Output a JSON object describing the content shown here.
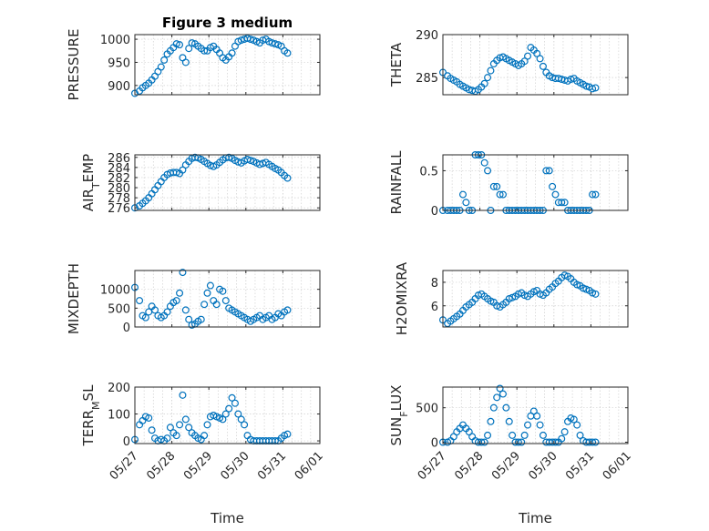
{
  "chart_data": [
    {
      "type": "scatter",
      "title": "Figure 3 medium",
      "ylabel": "PRESSURE",
      "xlim": [
        "05/27",
        "06/01"
      ],
      "ylim": [
        880,
        1010
      ],
      "yticks": [
        900,
        950,
        1000
      ],
      "ytick_labels": [
        "900",
        "950",
        "1000"
      ],
      "xticks": [
        "05/27",
        "05/28",
        "05/29",
        "05/30",
        "05/31",
        "06/01"
      ],
      "show_xticklabels": false,
      "grid": true,
      "x": [
        "05/27 00:00",
        "05/27 03:00",
        "05/27 05:00",
        "05/27 07:00",
        "05/27 09:00",
        "05/27 11:00",
        "05/27 13:00",
        "05/27 15:00",
        "05/27 17:00",
        "05/27 19:00",
        "05/27 21:00",
        "05/27 23:00",
        "05/28 01:00",
        "05/28 03:00",
        "05/28 05:00",
        "05/28 07:00",
        "05/28 09:00",
        "05/28 11:00",
        "05/28 13:00",
        "05/28 15:00",
        "05/28 17:00",
        "05/28 19:00",
        "05/28 21:00",
        "05/28 23:00",
        "05/29 01:00",
        "05/29 03:00",
        "05/29 05:00",
        "05/29 07:00",
        "05/29 09:00",
        "05/29 11:00",
        "05/29 13:00",
        "05/29 15:00",
        "05/29 17:00",
        "05/29 19:00",
        "05/29 21:00",
        "05/29 23:00",
        "05/30 01:00",
        "05/30 03:00",
        "05/30 05:00",
        "05/30 07:00",
        "05/30 09:00",
        "05/30 11:00",
        "05/30 13:00",
        "05/30 15:00",
        "05/30 17:00",
        "05/30 19:00",
        "05/30 21:00",
        "05/30 23:00",
        "05/31 01:00",
        "05/31 03:00"
      ],
      "y": [
        883,
        888,
        895,
        900,
        905,
        912,
        920,
        930,
        940,
        955,
        968,
        975,
        982,
        990,
        988,
        960,
        950,
        980,
        992,
        990,
        985,
        980,
        975,
        975,
        982,
        985,
        978,
        970,
        960,
        955,
        962,
        970,
        985,
        995,
        998,
        1000,
        1002,
        1000,
        998,
        995,
        992,
        998,
        1000,
        995,
        992,
        990,
        988,
        985,
        975,
        970
      ]
    },
    {
      "type": "scatter",
      "title": "",
      "ylabel": "THETA",
      "xlim": [
        "05/27",
        "06/01"
      ],
      "ylim": [
        283,
        290
      ],
      "yticks": [
        285,
        290
      ],
      "ytick_labels": [
        "285",
        "290"
      ],
      "xticks": [
        "05/27",
        "05/28",
        "05/29",
        "05/30",
        "05/31",
        "06/01"
      ],
      "show_xticklabels": false,
      "grid": true,
      "x": [
        "05/27 00:00",
        "05/27 03:00",
        "05/27 05:00",
        "05/27 07:00",
        "05/27 09:00",
        "05/27 11:00",
        "05/27 13:00",
        "05/27 15:00",
        "05/27 17:00",
        "05/27 19:00",
        "05/27 21:00",
        "05/27 23:00",
        "05/28 01:00",
        "05/28 03:00",
        "05/28 05:00",
        "05/28 07:00",
        "05/28 09:00",
        "05/28 11:00",
        "05/28 13:00",
        "05/28 15:00",
        "05/28 17:00",
        "05/28 19:00",
        "05/28 21:00",
        "05/28 23:00",
        "05/29 01:00",
        "05/29 03:00",
        "05/29 05:00",
        "05/29 07:00",
        "05/29 09:00",
        "05/29 11:00",
        "05/29 13:00",
        "05/29 15:00",
        "05/29 17:00",
        "05/29 19:00",
        "05/29 21:00",
        "05/29 23:00",
        "05/30 01:00",
        "05/30 03:00",
        "05/30 05:00",
        "05/30 07:00",
        "05/30 09:00",
        "05/30 11:00",
        "05/30 13:00",
        "05/30 15:00",
        "05/30 17:00",
        "05/30 19:00",
        "05/30 21:00",
        "05/30 23:00",
        "05/31 01:00",
        "05/31 03:00"
      ],
      "y": [
        285.6,
        285.2,
        284.9,
        284.7,
        284.5,
        284.2,
        284.0,
        283.8,
        283.6,
        283.5,
        283.4,
        283.6,
        283.9,
        284.3,
        285.0,
        285.8,
        286.6,
        287.0,
        287.3,
        287.4,
        287.2,
        287.0,
        286.8,
        286.6,
        286.4,
        286.6,
        286.9,
        287.5,
        288.5,
        288.2,
        287.8,
        287.2,
        286.3,
        285.6,
        285.2,
        285.0,
        284.9,
        284.9,
        284.8,
        284.7,
        284.6,
        284.8,
        284.9,
        284.6,
        284.4,
        284.2,
        284.0,
        283.9,
        283.7,
        283.8
      ]
    },
    {
      "type": "scatter",
      "title": "",
      "ylabel": "AIR_TEMP",
      "xlim": [
        "05/27",
        "06/01"
      ],
      "ylim": [
        275.5,
        286.5
      ],
      "yticks": [
        276,
        278,
        280,
        282,
        284,
        286
      ],
      "ytick_labels": [
        "276",
        "278",
        "280",
        "282",
        "284",
        "286"
      ],
      "xticks": [
        "05/27",
        "05/28",
        "05/29",
        "05/30",
        "05/31",
        "06/01"
      ],
      "show_xticklabels": false,
      "grid": true,
      "x": [
        "05/27 00:00",
        "05/27 03:00",
        "05/27 05:00",
        "05/27 07:00",
        "05/27 09:00",
        "05/27 11:00",
        "05/27 13:00",
        "05/27 15:00",
        "05/27 17:00",
        "05/27 19:00",
        "05/27 21:00",
        "05/27 23:00",
        "05/28 01:00",
        "05/28 03:00",
        "05/28 05:00",
        "05/28 07:00",
        "05/28 09:00",
        "05/28 11:00",
        "05/28 13:00",
        "05/28 15:00",
        "05/28 17:00",
        "05/28 19:00",
        "05/28 21:00",
        "05/28 23:00",
        "05/29 01:00",
        "05/29 03:00",
        "05/29 05:00",
        "05/29 07:00",
        "05/29 09:00",
        "05/29 11:00",
        "05/29 13:00",
        "05/29 15:00",
        "05/29 17:00",
        "05/29 19:00",
        "05/29 21:00",
        "05/29 23:00",
        "05/30 01:00",
        "05/30 03:00",
        "05/30 05:00",
        "05/30 07:00",
        "05/30 09:00",
        "05/30 11:00",
        "05/30 13:00",
        "05/30 15:00",
        "05/30 17:00",
        "05/30 19:00",
        "05/30 21:00",
        "05/30 23:00",
        "05/31 01:00",
        "05/31 03:00"
      ],
      "y": [
        276.0,
        276.4,
        276.9,
        277.4,
        278.0,
        278.8,
        279.6,
        280.4,
        281.2,
        282.0,
        282.6,
        282.9,
        283.0,
        283.0,
        282.8,
        283.5,
        284.5,
        285.2,
        285.8,
        286.0,
        285.9,
        285.6,
        285.2,
        284.8,
        284.4,
        284.2,
        284.5,
        285.0,
        285.5,
        285.9,
        286.0,
        285.8,
        285.4,
        285.1,
        284.9,
        285.3,
        285.6,
        285.4,
        285.2,
        284.9,
        284.6,
        284.8,
        285.0,
        284.6,
        284.2,
        283.8,
        283.5,
        283.0,
        282.4,
        281.9
      ]
    },
    {
      "type": "scatter",
      "title": "",
      "ylabel": "RAINFALL",
      "xlim": [
        "05/27",
        "06/01"
      ],
      "ylim": [
        0,
        0.7
      ],
      "yticks": [
        0,
        0.5
      ],
      "ytick_labels": [
        "0",
        "0.5"
      ],
      "xticks": [
        "05/27",
        "05/28",
        "05/29",
        "05/30",
        "05/31",
        "06/01"
      ],
      "show_xticklabels": false,
      "grid": true,
      "x": [
        "05/27 00:00",
        "05/27 03:00",
        "05/27 05:00",
        "05/27 07:00",
        "05/27 09:00",
        "05/27 11:00",
        "05/27 13:00",
        "05/27 15:00",
        "05/27 17:00",
        "05/27 19:00",
        "05/27 21:00",
        "05/27 23:00",
        "05/28 01:00",
        "05/28 03:00",
        "05/28 05:00",
        "05/28 07:00",
        "05/28 09:00",
        "05/28 11:00",
        "05/28 13:00",
        "05/28 15:00",
        "05/28 17:00",
        "05/28 19:00",
        "05/28 21:00",
        "05/28 23:00",
        "05/29 01:00",
        "05/29 03:00",
        "05/29 05:00",
        "05/29 07:00",
        "05/29 09:00",
        "05/29 11:00",
        "05/29 13:00",
        "05/29 15:00",
        "05/29 17:00",
        "05/29 19:00",
        "05/29 21:00",
        "05/29 23:00",
        "05/30 01:00",
        "05/30 03:00",
        "05/30 05:00",
        "05/30 07:00",
        "05/30 09:00",
        "05/30 11:00",
        "05/30 13:00",
        "05/30 15:00",
        "05/30 17:00",
        "05/30 19:00",
        "05/30 21:00",
        "05/30 23:00",
        "05/31 01:00",
        "05/31 03:00"
      ],
      "y": [
        0,
        0,
        0,
        0,
        0,
        0,
        0.2,
        0.1,
        0,
        0,
        0.7,
        0.7,
        0.7,
        0.6,
        0.5,
        0,
        0.3,
        0.3,
        0.2,
        0.2,
        0,
        0,
        0,
        0,
        0,
        0,
        0,
        0,
        0,
        0,
        0,
        0,
        0,
        0.5,
        0.5,
        0.3,
        0.2,
        0.1,
        0.1,
        0.1,
        0,
        0,
        0,
        0,
        0,
        0,
        0,
        0,
        0.2,
        0.2
      ]
    },
    {
      "type": "scatter",
      "title": "",
      "ylabel": "MIXDEPTH",
      "xlim": [
        "05/27",
        "06/01"
      ],
      "ylim": [
        0,
        1500
      ],
      "yticks": [
        0,
        500,
        1000
      ],
      "ytick_labels": [
        "0",
        "500",
        "1000"
      ],
      "xticks": [
        "05/27",
        "05/28",
        "05/29",
        "05/30",
        "05/31",
        "06/01"
      ],
      "show_xticklabels": false,
      "grid": true,
      "x": [
        "05/27 00:00",
        "05/27 03:00",
        "05/27 05:00",
        "05/27 07:00",
        "05/27 09:00",
        "05/27 11:00",
        "05/27 13:00",
        "05/27 15:00",
        "05/27 17:00",
        "05/27 19:00",
        "05/27 21:00",
        "05/27 23:00",
        "05/28 01:00",
        "05/28 03:00",
        "05/28 05:00",
        "05/28 07:00",
        "05/28 09:00",
        "05/28 11:00",
        "05/28 13:00",
        "05/28 15:00",
        "05/28 17:00",
        "05/28 19:00",
        "05/28 21:00",
        "05/28 23:00",
        "05/29 01:00",
        "05/29 03:00",
        "05/29 05:00",
        "05/29 07:00",
        "05/29 09:00",
        "05/29 11:00",
        "05/29 13:00",
        "05/29 15:00",
        "05/29 17:00",
        "05/29 19:00",
        "05/29 21:00",
        "05/29 23:00",
        "05/30 01:00",
        "05/30 03:00",
        "05/30 05:00",
        "05/30 07:00",
        "05/30 09:00",
        "05/30 11:00",
        "05/30 13:00",
        "05/30 15:00",
        "05/30 17:00",
        "05/30 19:00",
        "05/30 21:00",
        "05/30 23:00",
        "05/31 01:00",
        "05/31 03:00"
      ],
      "y": [
        1050,
        700,
        300,
        250,
        400,
        550,
        450,
        300,
        250,
        300,
        400,
        550,
        650,
        700,
        900,
        1450,
        450,
        200,
        50,
        80,
        150,
        200,
        600,
        900,
        1100,
        700,
        600,
        1000,
        950,
        700,
        500,
        450,
        400,
        350,
        300,
        250,
        200,
        150,
        200,
        250,
        300,
        200,
        250,
        300,
        200,
        250,
        350,
        300,
        400,
        450
      ]
    },
    {
      "type": "scatter",
      "title": "",
      "ylabel": "H2OMIXRA",
      "xlim": [
        "05/27",
        "06/01"
      ],
      "ylim": [
        4.2,
        9.0
      ],
      "yticks": [
        6,
        8
      ],
      "ytick_labels": [
        "6",
        "8"
      ],
      "xticks": [
        "05/27",
        "05/28",
        "05/29",
        "05/30",
        "05/31",
        "06/01"
      ],
      "show_xticklabels": false,
      "grid": true,
      "x": [
        "05/27 00:00",
        "05/27 03:00",
        "05/27 05:00",
        "05/27 07:00",
        "05/27 09:00",
        "05/27 11:00",
        "05/27 13:00",
        "05/27 15:00",
        "05/27 17:00",
        "05/27 19:00",
        "05/27 21:00",
        "05/27 23:00",
        "05/28 01:00",
        "05/28 03:00",
        "05/28 05:00",
        "05/28 07:00",
        "05/28 09:00",
        "05/28 11:00",
        "05/28 13:00",
        "05/28 15:00",
        "05/28 17:00",
        "05/28 19:00",
        "05/28 21:00",
        "05/28 23:00",
        "05/29 01:00",
        "05/29 03:00",
        "05/29 05:00",
        "05/29 07:00",
        "05/29 09:00",
        "05/29 11:00",
        "05/29 13:00",
        "05/29 15:00",
        "05/29 17:00",
        "05/29 19:00",
        "05/29 21:00",
        "05/29 23:00",
        "05/30 01:00",
        "05/30 03:00",
        "05/30 05:00",
        "05/30 07:00",
        "05/30 09:00",
        "05/30 11:00",
        "05/30 13:00",
        "05/30 15:00",
        "05/30 17:00",
        "05/30 19:00",
        "05/30 21:00",
        "05/30 23:00",
        "05/31 01:00",
        "05/31 03:00"
      ],
      "y": [
        4.8,
        4.5,
        4.7,
        4.9,
        5.1,
        5.3,
        5.6,
        5.9,
        6.1,
        6.3,
        6.6,
        6.9,
        7.0,
        6.8,
        6.6,
        6.4,
        6.3,
        6.0,
        5.9,
        6.1,
        6.3,
        6.6,
        6.7,
        6.8,
        7.0,
        7.1,
        6.9,
        6.8,
        7.0,
        7.2,
        7.3,
        7.0,
        6.9,
        7.1,
        7.4,
        7.6,
        7.9,
        8.1,
        8.4,
        8.6,
        8.5,
        8.3,
        8.0,
        7.8,
        7.7,
        7.5,
        7.4,
        7.3,
        7.1,
        7.0
      ]
    },
    {
      "type": "scatter",
      "title": "",
      "ylabel": "TERR_MSL",
      "xlim": [
        "05/27",
        "06/01"
      ],
      "xlabel": "Time",
      "ylim": [
        -10,
        200
      ],
      "yticks": [
        0,
        100,
        200
      ],
      "ytick_labels": [
        "0",
        "100",
        "200"
      ],
      "xticks": [
        "05/27",
        "05/28",
        "05/29",
        "05/30",
        "05/31",
        "06/01"
      ],
      "show_xticklabels": true,
      "grid": true,
      "x": [
        "05/27 00:00",
        "05/27 03:00",
        "05/27 05:00",
        "05/27 07:00",
        "05/27 09:00",
        "05/27 11:00",
        "05/27 13:00",
        "05/27 15:00",
        "05/27 17:00",
        "05/27 19:00",
        "05/27 21:00",
        "05/27 23:00",
        "05/28 01:00",
        "05/28 03:00",
        "05/28 05:00",
        "05/28 07:00",
        "05/28 09:00",
        "05/28 11:00",
        "05/28 13:00",
        "05/28 15:00",
        "05/28 17:00",
        "05/28 19:00",
        "05/28 21:00",
        "05/28 23:00",
        "05/29 01:00",
        "05/29 03:00",
        "05/29 05:00",
        "05/29 07:00",
        "05/29 09:00",
        "05/29 11:00",
        "05/29 13:00",
        "05/29 15:00",
        "05/29 17:00",
        "05/29 19:00",
        "05/29 21:00",
        "05/29 23:00",
        "05/30 01:00",
        "05/30 03:00",
        "05/30 05:00",
        "05/30 07:00",
        "05/30 09:00",
        "05/30 11:00",
        "05/30 13:00",
        "05/30 15:00",
        "05/30 17:00",
        "05/30 19:00",
        "05/30 21:00",
        "05/30 23:00",
        "05/31 01:00",
        "05/31 03:00"
      ],
      "y": [
        5,
        60,
        75,
        90,
        85,
        40,
        10,
        0,
        5,
        0,
        10,
        50,
        30,
        20,
        60,
        170,
        80,
        50,
        30,
        20,
        10,
        5,
        20,
        60,
        90,
        95,
        90,
        85,
        80,
        100,
        120,
        160,
        140,
        100,
        80,
        60,
        20,
        5,
        0,
        0,
        0,
        0,
        0,
        0,
        0,
        0,
        0,
        10,
        20,
        25
      ]
    },
    {
      "type": "scatter",
      "title": "",
      "ylabel": "SUN_FLUX",
      "xlim": [
        "05/27",
        "06/01"
      ],
      "xlabel": "Time",
      "ylim": [
        -20,
        800
      ],
      "yticks": [
        0,
        500
      ],
      "ytick_labels": [
        "0",
        "500"
      ],
      "xticks": [
        "05/27",
        "05/28",
        "05/29",
        "05/30",
        "05/31",
        "06/01"
      ],
      "show_xticklabels": true,
      "grid": true,
      "x": [
        "05/27 00:00",
        "05/27 03:00",
        "05/27 05:00",
        "05/27 07:00",
        "05/27 09:00",
        "05/27 11:00",
        "05/27 13:00",
        "05/27 15:00",
        "05/27 17:00",
        "05/27 19:00",
        "05/27 21:00",
        "05/27 23:00",
        "05/28 01:00",
        "05/28 03:00",
        "05/28 05:00",
        "05/28 07:00",
        "05/28 09:00",
        "05/28 11:00",
        "05/28 13:00",
        "05/28 15:00",
        "05/28 17:00",
        "05/28 19:00",
        "05/28 21:00",
        "05/28 23:00",
        "05/29 01:00",
        "05/29 03:00",
        "05/29 05:00",
        "05/29 07:00",
        "05/29 09:00",
        "05/29 11:00",
        "05/29 13:00",
        "05/29 15:00",
        "05/29 17:00",
        "05/29 19:00",
        "05/29 21:00",
        "05/29 23:00",
        "05/30 01:00",
        "05/30 03:00",
        "05/30 05:00",
        "05/30 07:00",
        "05/30 09:00",
        "05/30 11:00",
        "05/30 13:00",
        "05/30 15:00",
        "05/30 17:00",
        "05/30 19:00",
        "05/30 21:00",
        "05/30 23:00",
        "05/31 01:00",
        "05/31 03:00"
      ],
      "y": [
        0,
        0,
        20,
        80,
        150,
        200,
        250,
        200,
        150,
        80,
        20,
        0,
        0,
        0,
        100,
        300,
        500,
        650,
        780,
        700,
        500,
        300,
        100,
        0,
        0,
        0,
        100,
        250,
        380,
        450,
        380,
        250,
        100,
        0,
        0,
        0,
        0,
        0,
        50,
        150,
        300,
        350,
        330,
        250,
        100,
        20,
        0,
        0,
        0,
        0
      ]
    }
  ]
}
